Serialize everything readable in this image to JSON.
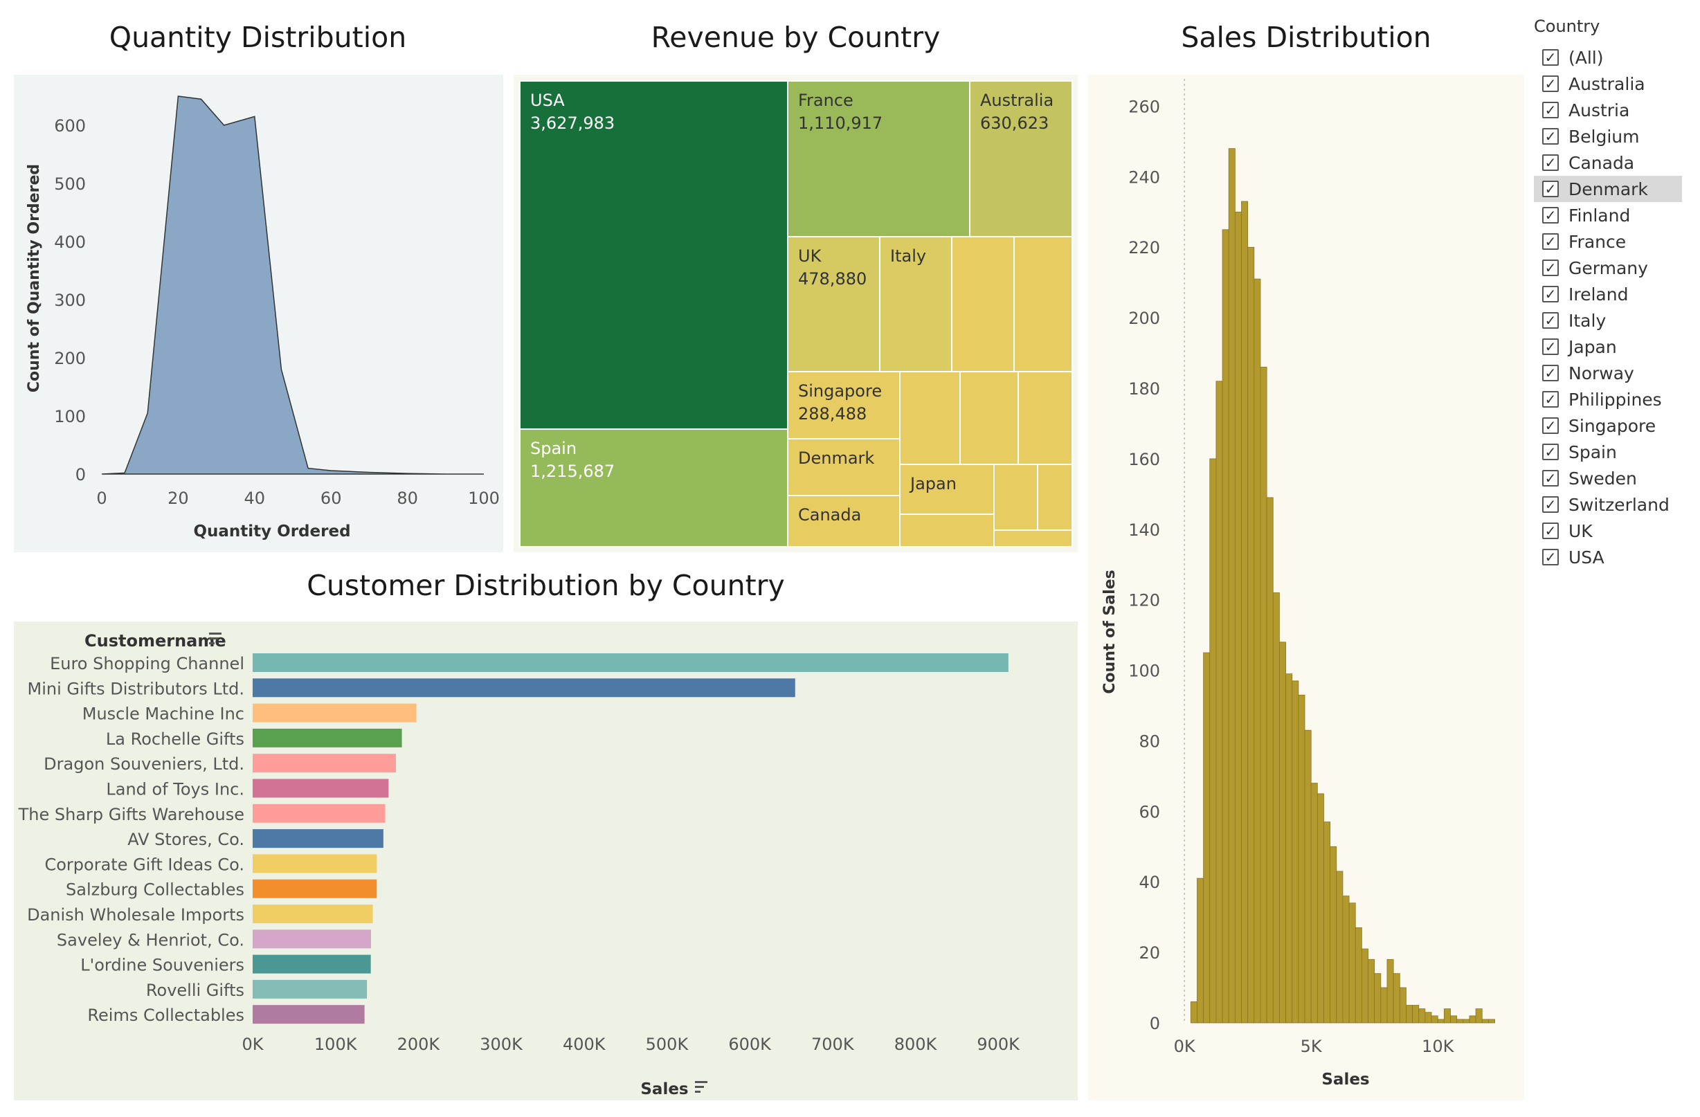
{
  "filter": {
    "title": "Country",
    "items": [
      "(All)",
      "Australia",
      "Austria",
      "Belgium",
      "Canada",
      "Denmark",
      "Finland",
      "France",
      "Germany",
      "Ireland",
      "Italy",
      "Japan",
      "Norway",
      "Philippines",
      "Singapore",
      "Spain",
      "Sweden",
      "Switzerland",
      "UK",
      "USA"
    ],
    "highlighted": "Denmark",
    "check_glyph": "✓"
  },
  "chart_data": [
    {
      "id": "quantity",
      "type": "area",
      "title": "Quantity Distribution",
      "xlabel": "Quantity Ordered",
      "ylabel": "Count of Quantity Ordered",
      "x": [
        0,
        6,
        12,
        20,
        26,
        32,
        40,
        47,
        54,
        60,
        70,
        80,
        90,
        100
      ],
      "y": [
        0,
        2,
        105,
        650,
        645,
        600,
        615,
        180,
        10,
        6,
        3,
        1,
        0,
        0
      ],
      "xlim": [
        0,
        100
      ],
      "ylim": [
        0,
        650
      ],
      "xticks": [
        0,
        20,
        40,
        60,
        80,
        100
      ],
      "yticks": [
        0,
        100,
        200,
        300,
        400,
        500,
        600
      ],
      "fill": "#8aa7c6",
      "stroke": "#333333",
      "background": "#f0f4f4"
    },
    {
      "id": "revenue",
      "type": "treemap",
      "title": "Revenue by Country",
      "labeled": [
        {
          "name": "USA",
          "value": "3,627,983"
        },
        {
          "name": "France",
          "value": "1,110,917"
        },
        {
          "name": "Australia",
          "value": "630,623"
        },
        {
          "name": "UK",
          "value": "478,880"
        },
        {
          "name": "Italy",
          "value": ""
        },
        {
          "name": "Singapore",
          "value": "288,488"
        },
        {
          "name": "Spain",
          "value": "1,215,687"
        },
        {
          "name": "Denmark",
          "value": ""
        },
        {
          "name": "Canada",
          "value": ""
        },
        {
          "name": "Japan",
          "value": ""
        }
      ],
      "colors": {
        "USA": "#17703a",
        "Spain": "#94ba59",
        "France": "#9aba59",
        "Australia": "#c3c45f",
        "UK": "#d4ca61",
        "Italy": "#dbcb63",
        "other": "#e7cc62"
      }
    },
    {
      "id": "customers",
      "type": "bar",
      "title": "Customer Distribution by Country",
      "ylabel": "Customername",
      "xlabel": "Sales",
      "categories": [
        "Euro Shopping Channel",
        "Mini Gifts Distributors Ltd.",
        "Muscle Machine Inc",
        "La Rochelle Gifts",
        "Dragon Souveniers, Ltd.",
        "Land of Toys Inc.",
        "The Sharp Gifts Warehouse",
        "AV Stores, Co.",
        "Corporate Gift Ideas Co.",
        "Salzburg Collectables",
        "Danish Wholesale Imports",
        "Saveley & Henriot, Co.",
        "L'ordine Souveniers",
        "Rovelli Gifts",
        "Reims Collectables"
      ],
      "values": [
        912294,
        654858,
        197737,
        180125,
        172990,
        164069,
        160010,
        157807,
        149883,
        149799,
        145042,
        142874,
        142601,
        137956,
        135043
      ],
      "colors": [
        "#76b7b2",
        "#4e79a7",
        "#ffbe7d",
        "#59a14f",
        "#ff9d9a",
        "#d37295",
        "#ff9d9a",
        "#4e79a7",
        "#f1ce63",
        "#f28e2b",
        "#f1ce63",
        "#d4a6c8",
        "#499894",
        "#86bcb6",
        "#b07aa1"
      ],
      "xlim": [
        0,
        950000
      ],
      "xticks": [
        0,
        100000,
        200000,
        300000,
        400000,
        500000,
        600000,
        700000,
        800000,
        900000
      ],
      "xticklabels": [
        "0K",
        "100K",
        "200K",
        "300K",
        "400K",
        "500K",
        "600K",
        "700K",
        "800K",
        "900K"
      ],
      "background": "#eef2e4"
    },
    {
      "id": "sales",
      "type": "bar",
      "title": "Sales Distribution",
      "xlabel": "Sales",
      "ylabel": "Count of Sales",
      "bin_width": 250,
      "bin_start": 250,
      "counts": [
        6,
        41,
        105,
        160,
        182,
        225,
        248,
        230,
        233,
        220,
        211,
        186,
        149,
        122,
        108,
        99,
        97,
        93,
        83,
        68,
        65,
        57,
        50,
        43,
        36,
        34,
        27,
        21,
        18,
        14,
        10,
        18,
        14,
        10,
        5,
        5,
        4,
        3,
        2,
        1,
        4,
        2,
        1,
        1,
        2,
        4,
        1,
        1
      ],
      "xlim": [
        -250,
        13000
      ],
      "ylim": [
        0,
        265
      ],
      "xticks": [
        0,
        5000,
        10000
      ],
      "xticklabels": [
        "0K",
        "5K",
        "10K"
      ],
      "yticks": [
        0,
        20,
        40,
        60,
        80,
        100,
        120,
        140,
        160,
        180,
        200,
        220,
        240,
        260
      ],
      "fill": "#b39a2f",
      "stroke": "#8a7420",
      "background": "#fcf9f1"
    }
  ]
}
